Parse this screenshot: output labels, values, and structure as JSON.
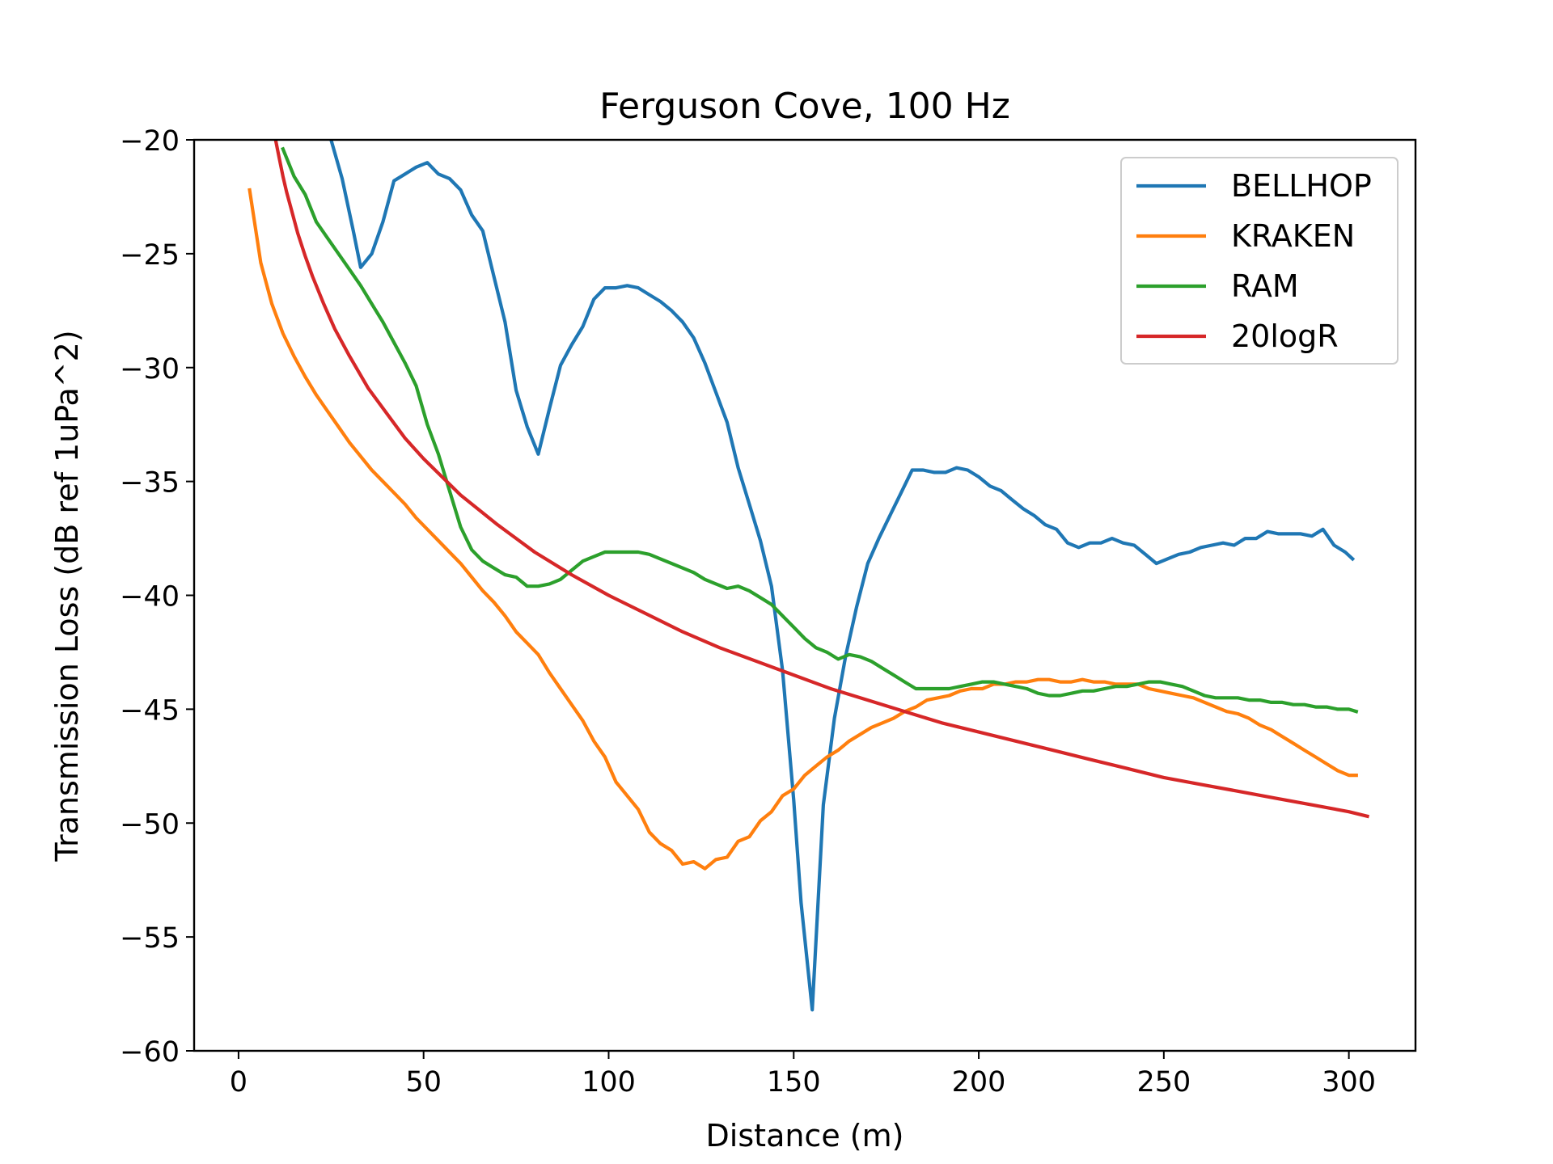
{
  "chart_data": {
    "type": "line",
    "title": "Ferguson Cove, 100 Hz",
    "xlabel": "Distance (m)",
    "ylabel": "Transmission Loss (dB ref 1uPa^2)",
    "xlim": [
      -12,
      318
    ],
    "ylim": [
      -60,
      -20
    ],
    "xticks": [
      0,
      50,
      100,
      150,
      200,
      250,
      300
    ],
    "xtick_labels": [
      "0",
      "50",
      "100",
      "150",
      "200",
      "250",
      "300"
    ],
    "yticks": [
      -20,
      -25,
      -30,
      -35,
      -40,
      -45,
      -50,
      -55,
      -60
    ],
    "ytick_labels": [
      "−20",
      "−25",
      "−30",
      "−35",
      "−40",
      "−45",
      "−50",
      "−55",
      "−60"
    ],
    "grid": false,
    "legend": "upper right",
    "series": [
      {
        "name": "BELLHOP",
        "color": "#1f77b4",
        "x": [
          25,
          28,
          31,
          33,
          36,
          39,
          42,
          45,
          48,
          51,
          54,
          57,
          60,
          63,
          66,
          69,
          72,
          75,
          78,
          81,
          84,
          87,
          90,
          93,
          96,
          99,
          102,
          105,
          108,
          111,
          114,
          117,
          120,
          123,
          126,
          129,
          132,
          135,
          138,
          141,
          144,
          147,
          150,
          152,
          155,
          158,
          161,
          164,
          167,
          170,
          173,
          176,
          179,
          182,
          185,
          188,
          191,
          194,
          197,
          200,
          203,
          206,
          209,
          212,
          215,
          218,
          221,
          224,
          227,
          230,
          233,
          236,
          239,
          242,
          245,
          248,
          251,
          254,
          257,
          260,
          263,
          266,
          269,
          272,
          275,
          278,
          281,
          284,
          287,
          290,
          293,
          296,
          299,
          301
        ],
        "y": [
          -20,
          -21.7,
          -24,
          -25.6,
          -25,
          -23.6,
          -21.8,
          -21.5,
          -21.2,
          -21,
          -21.5,
          -21.7,
          -22.2,
          -23.3,
          -24,
          -26,
          -28,
          -31,
          -32.6,
          -33.8,
          -31.8,
          -29.9,
          -29,
          -28.2,
          -27,
          -26.5,
          -26.5,
          -26.4,
          -26.5,
          -26.8,
          -27.1,
          -27.5,
          -28,
          -28.7,
          -29.8,
          -31.1,
          -32.4,
          -34.4,
          -36,
          -37.6,
          -39.6,
          -43.3,
          -49,
          -53.5,
          -58.2,
          -49.2,
          -45.4,
          -42.7,
          -40.5,
          -38.6,
          -37.5,
          -36.5,
          -35.5,
          -34.5,
          -34.5,
          -34.6,
          -34.6,
          -34.4,
          -34.5,
          -34.8,
          -35.2,
          -35.4,
          -35.8,
          -36.2,
          -36.5,
          -36.9,
          -37.1,
          -37.7,
          -37.9,
          -37.7,
          -37.7,
          -37.5,
          -37.7,
          -37.8,
          -38.2,
          -38.6,
          -38.4,
          -38.2,
          -38.1,
          -37.9,
          -37.8,
          -37.7,
          -37.8,
          -37.5,
          -37.5,
          -37.2,
          -37.3,
          -37.3,
          -37.3,
          -37.4,
          -37.1,
          -37.8,
          -38.1,
          -38.4
        ]
      },
      {
        "name": "KRAKEN",
        "color": "#ff7f0e",
        "x": [
          3,
          6,
          9,
          12,
          15,
          18,
          21,
          24,
          27,
          30,
          33,
          36,
          39,
          42,
          45,
          48,
          51,
          54,
          57,
          60,
          63,
          66,
          69,
          72,
          75,
          78,
          81,
          84,
          87,
          90,
          93,
          96,
          99,
          102,
          105,
          108,
          111,
          114,
          117,
          120,
          123,
          126,
          129,
          132,
          135,
          138,
          141,
          144,
          147,
          150,
          153,
          156,
          159,
          162,
          165,
          168,
          171,
          174,
          177,
          180,
          183,
          186,
          189,
          192,
          195,
          198,
          201,
          204,
          207,
          210,
          213,
          216,
          219,
          222,
          225,
          228,
          231,
          234,
          237,
          240,
          243,
          246,
          249,
          252,
          255,
          258,
          261,
          264,
          267,
          270,
          273,
          276,
          279,
          282,
          285,
          288,
          291,
          294,
          297,
          300,
          302
        ],
        "y": [
          -22.2,
          -25.4,
          -27.2,
          -28.5,
          -29.5,
          -30.4,
          -31.2,
          -31.9,
          -32.6,
          -33.3,
          -33.9,
          -34.5,
          -35,
          -35.5,
          -36,
          -36.6,
          -37.1,
          -37.6,
          -38.1,
          -38.6,
          -39.2,
          -39.8,
          -40.3,
          -40.9,
          -41.6,
          -42.1,
          -42.6,
          -43.4,
          -44.1,
          -44.8,
          -45.5,
          -46.4,
          -47.1,
          -48.2,
          -48.8,
          -49.4,
          -50.4,
          -50.9,
          -51.2,
          -51.8,
          -51.7,
          -52,
          -51.6,
          -51.5,
          -50.8,
          -50.6,
          -49.9,
          -49.5,
          -48.8,
          -48.5,
          -47.9,
          -47.5,
          -47.1,
          -46.8,
          -46.4,
          -46.1,
          -45.8,
          -45.6,
          -45.4,
          -45.1,
          -44.9,
          -44.6,
          -44.5,
          -44.4,
          -44.2,
          -44.1,
          -44.1,
          -43.9,
          -43.9,
          -43.8,
          -43.8,
          -43.7,
          -43.7,
          -43.8,
          -43.8,
          -43.7,
          -43.8,
          -43.8,
          -43.9,
          -43.9,
          -43.9,
          -44.1,
          -44.2,
          -44.3,
          -44.4,
          -44.5,
          -44.7,
          -44.9,
          -45.1,
          -45.2,
          -45.4,
          -45.7,
          -45.9,
          -46.2,
          -46.5,
          -46.8,
          -47.1,
          -47.4,
          -47.7,
          -47.9,
          -47.9
        ]
      },
      {
        "name": "RAM",
        "color": "#2ca02c",
        "x": [
          12,
          15,
          18,
          21,
          24,
          27,
          30,
          33,
          36,
          39,
          42,
          45,
          48,
          51,
          54,
          57,
          60,
          63,
          66,
          69,
          72,
          75,
          78,
          81,
          84,
          87,
          90,
          93,
          96,
          99,
          102,
          105,
          108,
          111,
          114,
          117,
          120,
          123,
          126,
          129,
          132,
          135,
          138,
          141,
          144,
          147,
          150,
          153,
          156,
          159,
          162,
          165,
          168,
          171,
          174,
          177,
          180,
          183,
          186,
          189,
          192,
          195,
          198,
          201,
          204,
          207,
          210,
          213,
          216,
          219,
          222,
          225,
          228,
          231,
          234,
          237,
          240,
          243,
          246,
          249,
          252,
          255,
          258,
          261,
          264,
          267,
          270,
          273,
          276,
          279,
          282,
          285,
          288,
          291,
          294,
          297,
          300,
          302
        ],
        "y": [
          -20.4,
          -21.6,
          -22.4,
          -23.6,
          -24.3,
          -25,
          -25.7,
          -26.4,
          -27.2,
          -28,
          -28.9,
          -29.8,
          -30.8,
          -32.5,
          -33.8,
          -35.4,
          -37,
          -38,
          -38.5,
          -38.8,
          -39.1,
          -39.2,
          -39.6,
          -39.6,
          -39.5,
          -39.3,
          -38.9,
          -38.5,
          -38.3,
          -38.1,
          -38.1,
          -38.1,
          -38.1,
          -38.2,
          -38.4,
          -38.6,
          -38.8,
          -39,
          -39.3,
          -39.5,
          -39.7,
          -39.6,
          -39.8,
          -40.1,
          -40.4,
          -40.9,
          -41.4,
          -41.9,
          -42.3,
          -42.5,
          -42.8,
          -42.6,
          -42.7,
          -42.9,
          -43.2,
          -43.5,
          -43.8,
          -44.1,
          -44.1,
          -44.1,
          -44.1,
          -44,
          -43.9,
          -43.8,
          -43.8,
          -43.9,
          -44,
          -44.1,
          -44.3,
          -44.4,
          -44.4,
          -44.3,
          -44.2,
          -44.2,
          -44.1,
          -44,
          -44,
          -43.9,
          -43.8,
          -43.8,
          -43.9,
          -44,
          -44.2,
          -44.4,
          -44.5,
          -44.5,
          -44.5,
          -44.6,
          -44.6,
          -44.7,
          -44.7,
          -44.8,
          -44.8,
          -44.9,
          -44.9,
          -45,
          -45,
          -45.1
        ]
      },
      {
        "name": "20logR",
        "color": "#d62728",
        "x": [
          10,
          11,
          12,
          13,
          14,
          16,
          18,
          20,
          23,
          26,
          30,
          35,
          40,
          45,
          50,
          55,
          60,
          70,
          80,
          90,
          100,
          110,
          120,
          130,
          140,
          150,
          160,
          170,
          180,
          190,
          200,
          210,
          220,
          230,
          240,
          250,
          260,
          270,
          280,
          290,
          300,
          305
        ],
        "y": [
          -20,
          -20.8,
          -21.6,
          -22.3,
          -22.9,
          -24.1,
          -25.1,
          -26,
          -27.2,
          -28.3,
          -29.5,
          -30.9,
          -32,
          -33.1,
          -34,
          -34.8,
          -35.6,
          -36.9,
          -38.1,
          -39.1,
          -40,
          -40.8,
          -41.6,
          -42.3,
          -42.9,
          -43.5,
          -44.1,
          -44.6,
          -45.1,
          -45.6,
          -46,
          -46.4,
          -46.8,
          -47.2,
          -47.6,
          -48,
          -48.3,
          -48.6,
          -48.9,
          -49.2,
          -49.5,
          -49.7
        ]
      }
    ]
  }
}
